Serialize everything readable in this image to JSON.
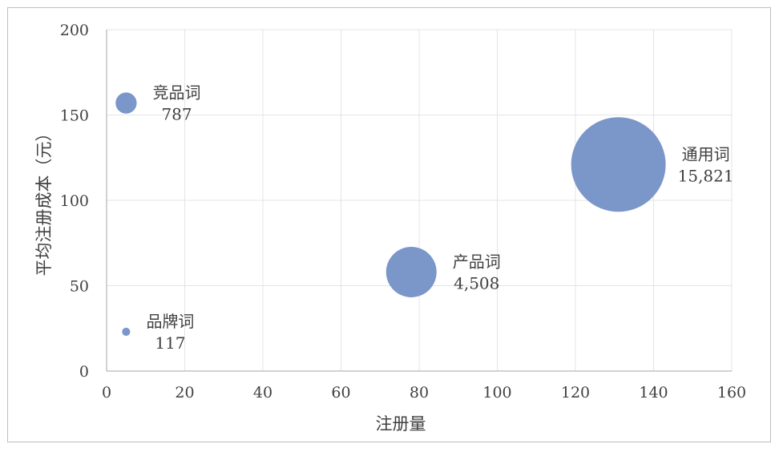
{
  "chart_data": {
    "type": "bubble",
    "title": "",
    "xlabel": "注册量",
    "ylabel": "平均注册成本（元）",
    "xlim": [
      0,
      160
    ],
    "ylim": [
      0,
      200
    ],
    "xticks": [
      0,
      20,
      40,
      60,
      80,
      100,
      120,
      140,
      160
    ],
    "yticks": [
      0,
      50,
      100,
      150,
      200
    ],
    "grid": true,
    "legend": "none",
    "color": "#7b96c8",
    "points": [
      {
        "label": "竞品词",
        "value_label": "787",
        "x": 5,
        "y": 157,
        "size": 787
      },
      {
        "label": "品牌词",
        "value_label": "117",
        "x": 5,
        "y": 23,
        "size": 117
      },
      {
        "label": "产品词",
        "value_label": "4,508",
        "x": 78,
        "y": 58,
        "size": 4508
      },
      {
        "label": "通用词",
        "value_label": "15,821",
        "x": 131,
        "y": 121,
        "size": 15821
      }
    ]
  }
}
